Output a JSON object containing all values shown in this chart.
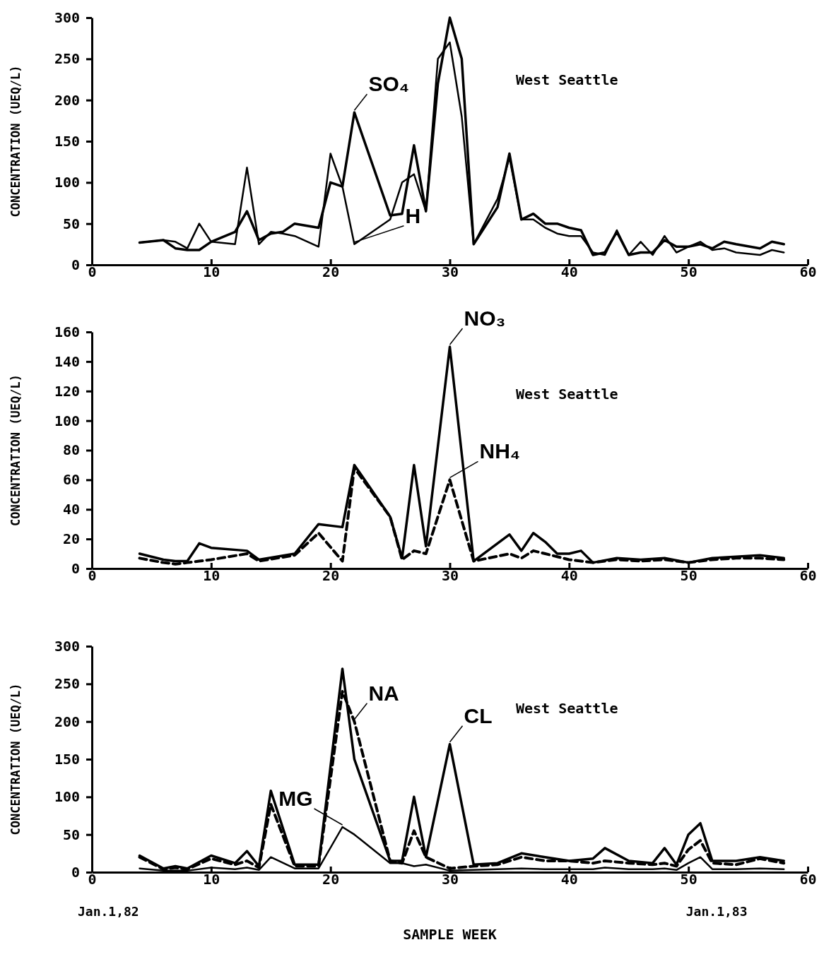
{
  "chart_data": [
    {
      "type": "line",
      "ylabel": "CONCENTRATION (UEQ/L)",
      "annotations": [
        "West Seattle"
      ],
      "xlim": [
        0,
        60
      ],
      "xticks": [
        0,
        10,
        20,
        30,
        40,
        50,
        60
      ],
      "ylim": [
        0,
        300
      ],
      "yticks": [
        0,
        50,
        100,
        150,
        200,
        250,
        300
      ],
      "grid": false,
      "x": [
        4,
        6,
        7,
        8,
        9,
        10,
        12,
        13,
        14,
        15,
        16,
        17,
        19,
        20,
        21,
        22,
        25,
        26,
        27,
        28,
        29,
        30,
        31,
        32,
        34,
        35,
        36,
        37,
        38,
        39,
        40,
        41,
        42,
        43,
        44,
        45,
        46,
        47,
        48,
        49,
        50,
        51,
        52,
        53,
        54,
        56,
        57,
        58
      ],
      "series": [
        {
          "name": "SO₄",
          "color": "#000000",
          "line_style": "solid",
          "values": [
            27,
            30,
            20,
            18,
            18,
            28,
            40,
            65,
            30,
            38,
            40,
            50,
            45,
            100,
            95,
            185,
            60,
            62,
            145,
            65,
            220,
            300,
            250,
            25,
            70,
            135,
            55,
            62,
            50,
            50,
            45,
            42,
            12,
            15,
            40,
            12,
            15,
            15,
            30,
            22,
            22,
            25,
            20,
            28,
            25,
            20,
            28,
            25
          ]
        },
        {
          "name": "H",
          "color": "#000000",
          "line_style": "solid",
          "values": [
            27,
            30,
            28,
            20,
            50,
            28,
            25,
            118,
            25,
            40,
            38,
            35,
            22,
            135,
            95,
            25,
            55,
            100,
            110,
            65,
            250,
            270,
            180,
            25,
            80,
            130,
            55,
            55,
            45,
            38,
            35,
            35,
            15,
            12,
            42,
            12,
            28,
            12,
            35,
            15,
            22,
            28,
            18,
            20,
            15,
            12,
            18,
            15
          ]
        }
      ]
    },
    {
      "type": "line",
      "ylabel": "CONCENTRATION (UEQ/L)",
      "annotations": [
        "West Seattle"
      ],
      "xlim": [
        0,
        60
      ],
      "xticks": [
        0,
        10,
        20,
        30,
        40,
        50,
        60
      ],
      "ylim": [
        0,
        160
      ],
      "yticks": [
        0,
        20,
        40,
        60,
        80,
        100,
        120,
        140,
        160
      ],
      "grid": false,
      "x": [
        4,
        6,
        7,
        8,
        9,
        10,
        13,
        14,
        17,
        19,
        21,
        22,
        25,
        26,
        27,
        28,
        30,
        32,
        35,
        36,
        37,
        38,
        39,
        40,
        41,
        42,
        44,
        46,
        48,
        50,
        52,
        54,
        56,
        58
      ],
      "series": [
        {
          "name": "NO₃",
          "color": "#000000",
          "line_style": "solid",
          "values": [
            10,
            6,
            5,
            5,
            17,
            14,
            12,
            6,
            10,
            30,
            28,
            70,
            35,
            7,
            70,
            15,
            150,
            5,
            23,
            12,
            24,
            18,
            10,
            10,
            12,
            4,
            7,
            6,
            7,
            4,
            7,
            8,
            9,
            7
          ]
        },
        {
          "name": "NH₄",
          "color": "#000000",
          "line_style": "dashed",
          "values": [
            7,
            4,
            3,
            4,
            5,
            6,
            10,
            5,
            9,
            24,
            5,
            68,
            35,
            6,
            12,
            10,
            60,
            5,
            10,
            7,
            12,
            10,
            8,
            6,
            5,
            4,
            6,
            5,
            6,
            4,
            6,
            7,
            7,
            6
          ]
        }
      ]
    },
    {
      "type": "line",
      "xlabel": "SAMPLE WEEK",
      "ylabel": "CONCENTRATION (UEQ/L)",
      "annotations": [
        "West Seattle",
        "Jan.1,82",
        "Jan.1,83"
      ],
      "xlim": [
        0,
        60
      ],
      "xticks": [
        0,
        10,
        20,
        30,
        40,
        50,
        60
      ],
      "ylim": [
        0,
        300
      ],
      "yticks": [
        0,
        50,
        100,
        150,
        200,
        250,
        300
      ],
      "grid": false,
      "x": [
        4,
        6,
        7,
        8,
        10,
        12,
        13,
        14,
        15,
        17,
        19,
        21,
        22,
        25,
        26,
        27,
        28,
        30,
        32,
        34,
        36,
        38,
        40,
        42,
        43,
        45,
        47,
        48,
        49,
        50,
        51,
        52,
        54,
        56,
        58
      ],
      "series": [
        {
          "name": "CL",
          "color": "#000000",
          "line_style": "solid",
          "values": [
            22,
            5,
            8,
            5,
            22,
            12,
            28,
            8,
            108,
            10,
            10,
            270,
            150,
            15,
            15,
            100,
            20,
            170,
            10,
            12,
            25,
            20,
            15,
            18,
            32,
            15,
            12,
            32,
            10,
            50,
            65,
            15,
            15,
            20,
            15
          ]
        },
        {
          "name": "NA",
          "color": "#000000",
          "line_style": "dashed",
          "values": [
            20,
            4,
            6,
            4,
            18,
            10,
            15,
            6,
            90,
            8,
            8,
            240,
            200,
            15,
            12,
            55,
            20,
            5,
            8,
            10,
            20,
            15,
            15,
            12,
            15,
            12,
            10,
            12,
            8,
            30,
            42,
            12,
            10,
            18,
            12
          ]
        },
        {
          "name": "MG",
          "color": "#000000",
          "line_style": "solid",
          "values": [
            5,
            2,
            2,
            2,
            6,
            4,
            6,
            3,
            20,
            5,
            5,
            60,
            50,
            12,
            12,
            8,
            10,
            2,
            3,
            4,
            5,
            4,
            4,
            4,
            6,
            4,
            4,
            5,
            3,
            12,
            20,
            4,
            4,
            5,
            4
          ]
        }
      ]
    }
  ]
}
